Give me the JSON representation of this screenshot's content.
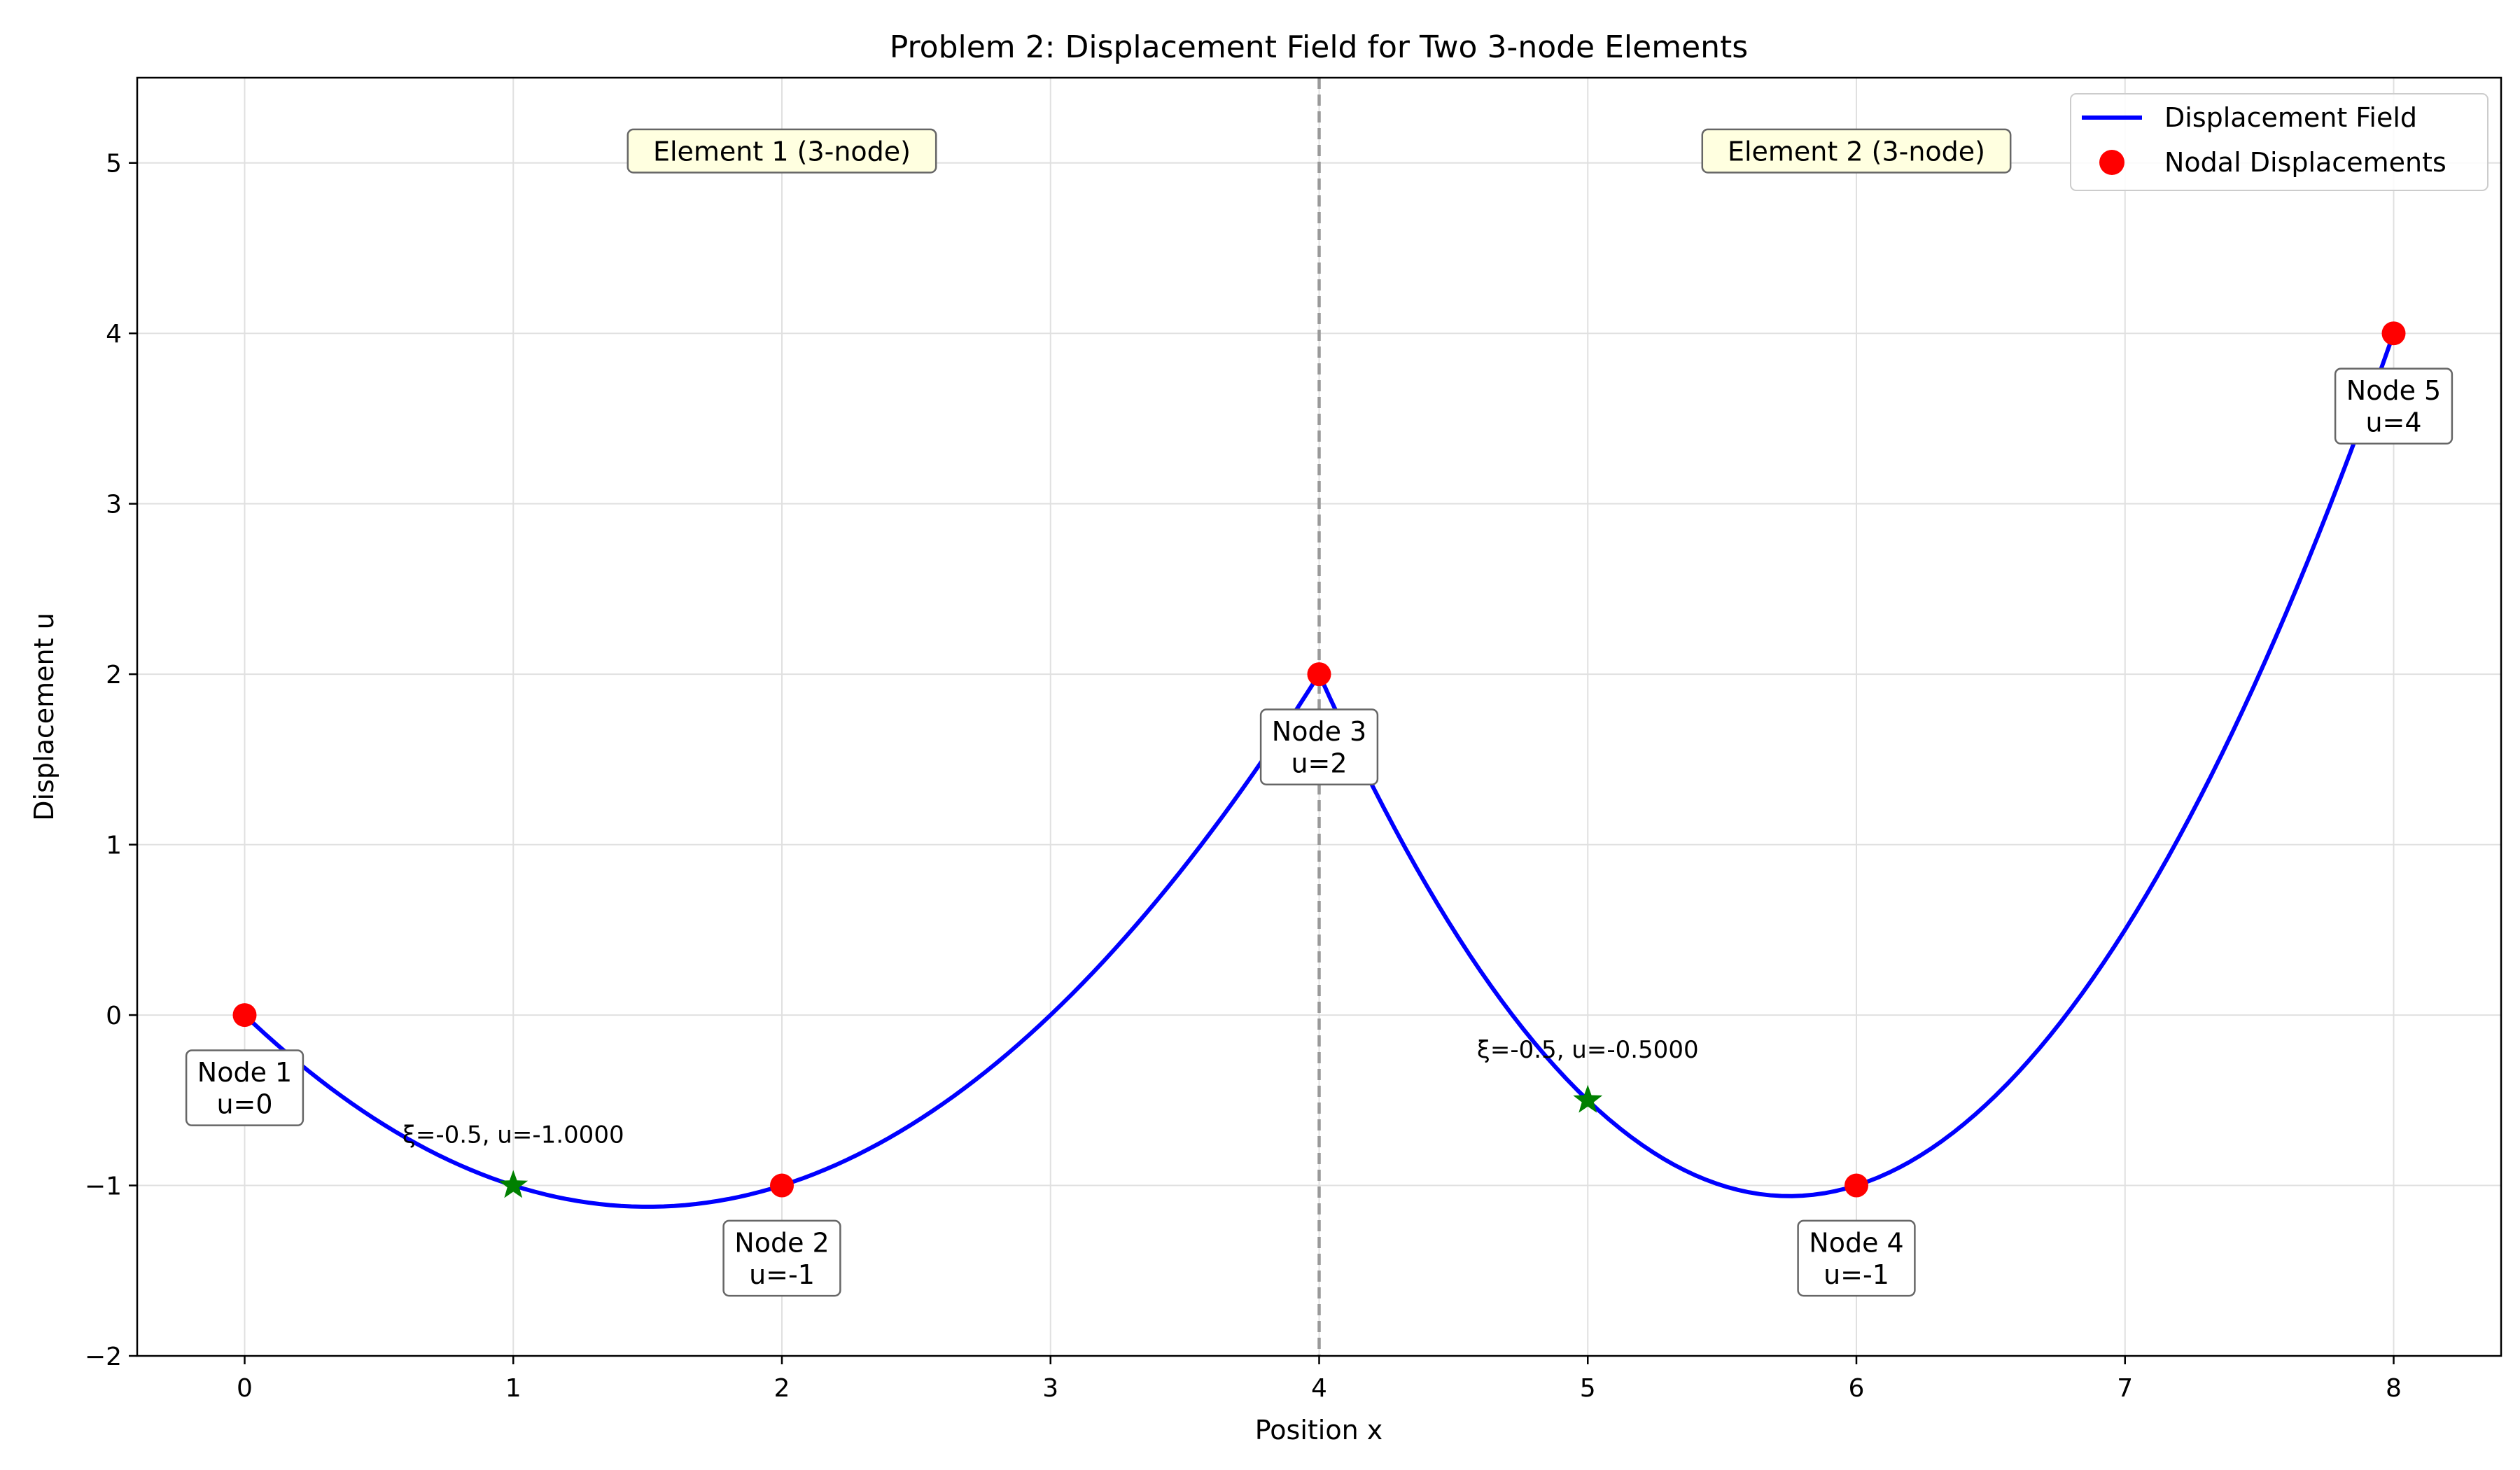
{
  "chart_data": {
    "type": "line",
    "title": "Problem 2: Displacement Field for Two 3-node Elements",
    "xlabel": "Position x",
    "ylabel": "Displacement u",
    "xlim": [
      -0.4,
      8.4
    ],
    "ylim": [
      -2,
      5.5
    ],
    "xticks": [
      0,
      1,
      2,
      3,
      4,
      5,
      6,
      7,
      8
    ],
    "yticks": [
      -2,
      -1,
      0,
      1,
      2,
      3,
      4,
      5
    ],
    "xtick_labels": [
      "0",
      "1",
      "2",
      "3",
      "4",
      "5",
      "6",
      "7",
      "8"
    ],
    "ytick_labels": [
      "−2",
      "−1",
      "0",
      "1",
      "2",
      "3",
      "4",
      "5"
    ],
    "grid": true,
    "legend_position": "top-right",
    "series": [
      {
        "name": "Displacement Field",
        "kind": "line",
        "color": "#0000ff",
        "elements": [
          {
            "nodes_x": [
              0,
              2,
              4
            ],
            "nodes_u": [
              0,
              -1,
              2
            ]
          },
          {
            "nodes_x": [
              4,
              6,
              8
            ],
            "nodes_u": [
              2,
              -1,
              4
            ]
          }
        ]
      },
      {
        "name": "Nodal Displacements",
        "kind": "scatter",
        "color": "#ff0000",
        "x": [
          0,
          2,
          4,
          6,
          8
        ],
        "y": [
          0,
          -1,
          2,
          -1,
          4
        ]
      }
    ],
    "star_points": {
      "color": "#008000",
      "x": [
        1,
        5
      ],
      "y": [
        -1.0,
        -0.5
      ],
      "labels": [
        "ξ=-0.5, u=-1.0000",
        "ξ=-0.5, u=-0.5000"
      ]
    },
    "divider_x": 4,
    "node_labels": [
      {
        "line1": "Node 1",
        "line2": "u=0"
      },
      {
        "line1": "Node 2",
        "line2": "u=-1"
      },
      {
        "line1": "Node 3",
        "line2": "u=2"
      },
      {
        "line1": "Node 4",
        "line2": "u=-1"
      },
      {
        "line1": "Node 5",
        "line2": "u=4"
      }
    ],
    "element_labels": [
      "Element 1 (3-node)",
      "Element 2 (3-node)"
    ],
    "element_label_color": "#ffffe0"
  }
}
